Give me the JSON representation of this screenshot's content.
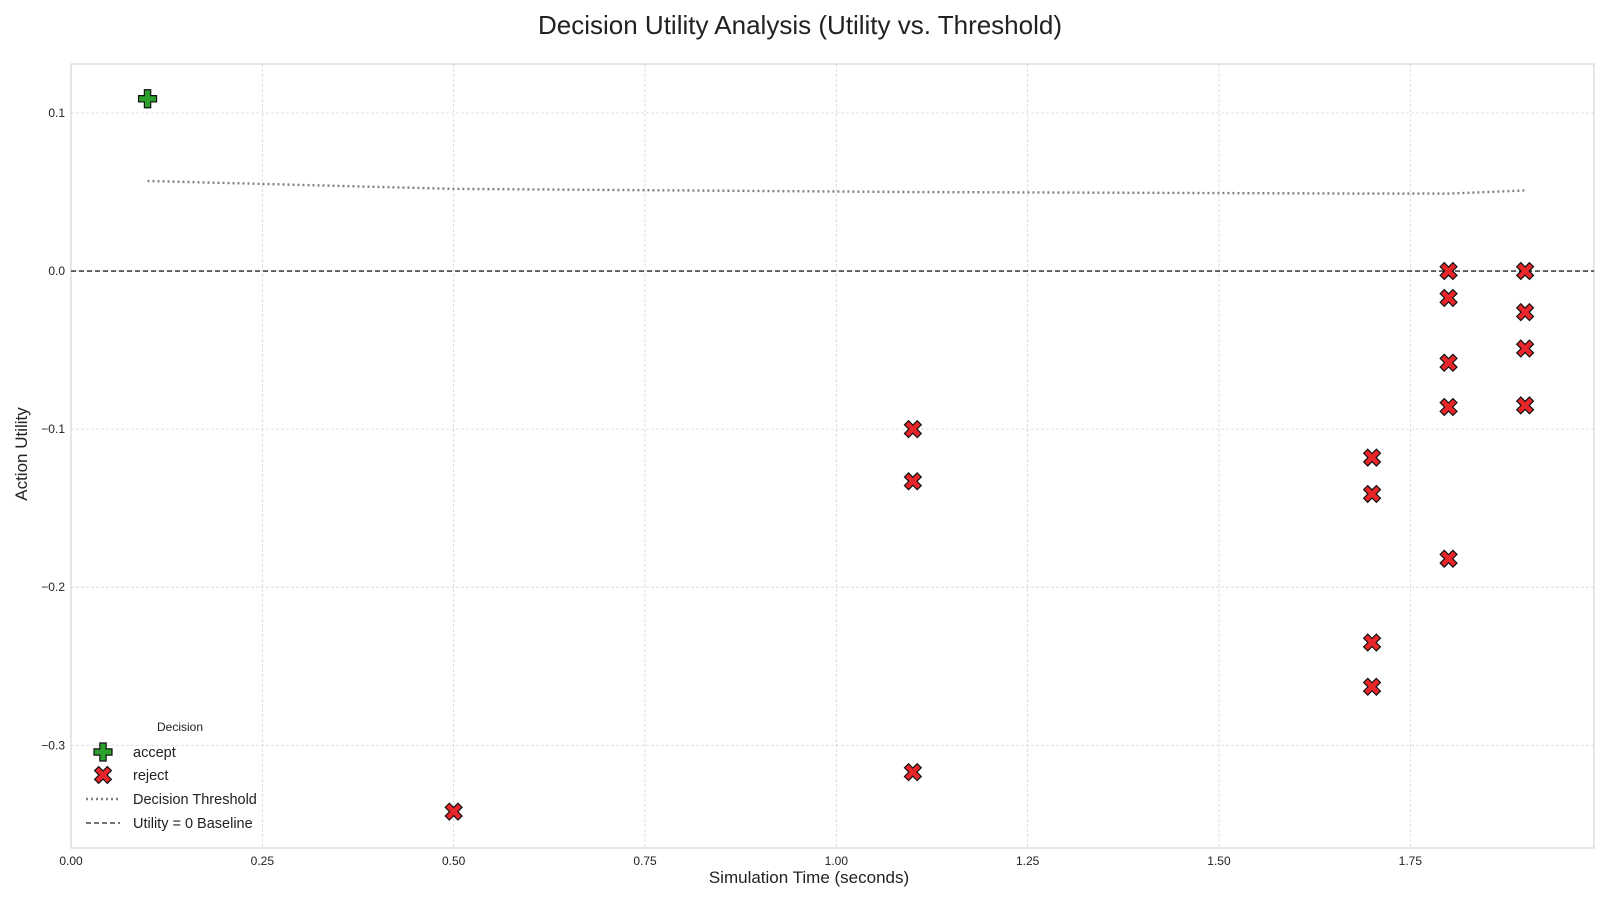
{
  "chart_data": {
    "type": "scatter",
    "title": "Decision Utility Analysis (Utility vs. Threshold)",
    "xlabel": "Simulation Time (seconds)",
    "ylabel": "Action Utility",
    "xlim": [
      0.0,
      1.99
    ],
    "ylim": [
      -0.365,
      0.131
    ],
    "grid": true,
    "x_ticks": [
      0.0,
      0.25,
      0.5,
      0.75,
      1.0,
      1.25,
      1.5,
      1.75
    ],
    "x_tick_labels": [
      "0.00",
      "0.25",
      "0.50",
      "0.75",
      "1.00",
      "1.25",
      "1.50",
      "1.75"
    ],
    "y_ticks": [
      0.1,
      0.0,
      -0.1,
      -0.2,
      -0.3
    ],
    "y_tick_labels": [
      "0.1",
      "0.0",
      "−0.1",
      "−0.2",
      "−0.3"
    ],
    "legend": {
      "title": "Decision",
      "placement": "bottom-left",
      "entries": [
        "accept",
        "reject",
        "Decision Threshold",
        "Utility = 0 Baseline"
      ]
    },
    "colors": {
      "accept": "#2ca02c",
      "reject": "#e8262a",
      "threshold": "#808080",
      "baseline": "#222222"
    },
    "series": [
      {
        "name": "accept",
        "marker": "plus",
        "points": [
          [
            0.1,
            0.109
          ]
        ]
      },
      {
        "name": "reject",
        "marker": "x",
        "points": [
          [
            0.5,
            -0.342
          ],
          [
            1.1,
            -0.1
          ],
          [
            1.1,
            -0.133
          ],
          [
            1.1,
            -0.317
          ],
          [
            1.7,
            -0.118
          ],
          [
            1.7,
            -0.141
          ],
          [
            1.7,
            -0.235
          ],
          [
            1.7,
            -0.263
          ],
          [
            1.8,
            0.0
          ],
          [
            1.8,
            -0.017
          ],
          [
            1.8,
            -0.058
          ],
          [
            1.8,
            -0.086
          ],
          [
            1.8,
            -0.182
          ],
          [
            1.9,
            0.0
          ],
          [
            1.9,
            -0.026
          ],
          [
            1.9,
            -0.049
          ],
          [
            1.9,
            -0.085
          ]
        ]
      },
      {
        "name": "Decision Threshold",
        "line": "dotted",
        "points": [
          [
            0.1,
            0.057
          ],
          [
            0.5,
            0.052
          ],
          [
            1.1,
            0.05
          ],
          [
            1.7,
            0.049
          ],
          [
            1.8,
            0.049
          ],
          [
            1.9,
            0.051
          ]
        ]
      },
      {
        "name": "Utility = 0 Baseline",
        "line": "dashed",
        "y": 0.0
      }
    ]
  }
}
